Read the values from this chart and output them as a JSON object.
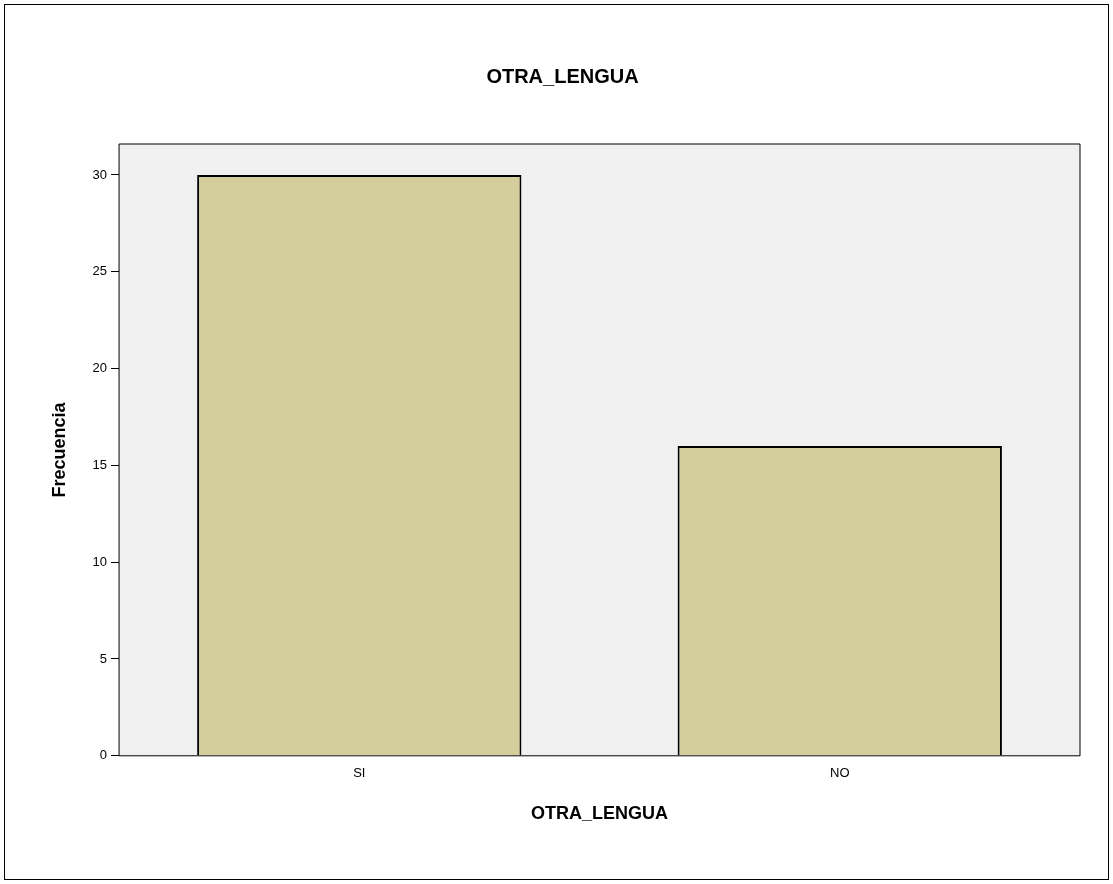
{
  "chart_data": {
    "type": "bar",
    "title": "OTRA_LENGUA",
    "xlabel": "OTRA_LENGUA",
    "ylabel": "Frecuencia",
    "categories": [
      "SI",
      "NO"
    ],
    "values": [
      30,
      16
    ],
    "color": "#d3ce9c",
    "ylim": [
      0,
      31.6
    ],
    "yticks": [
      0,
      5,
      10,
      15,
      20,
      25,
      30
    ],
    "grid": false,
    "legend": false
  }
}
